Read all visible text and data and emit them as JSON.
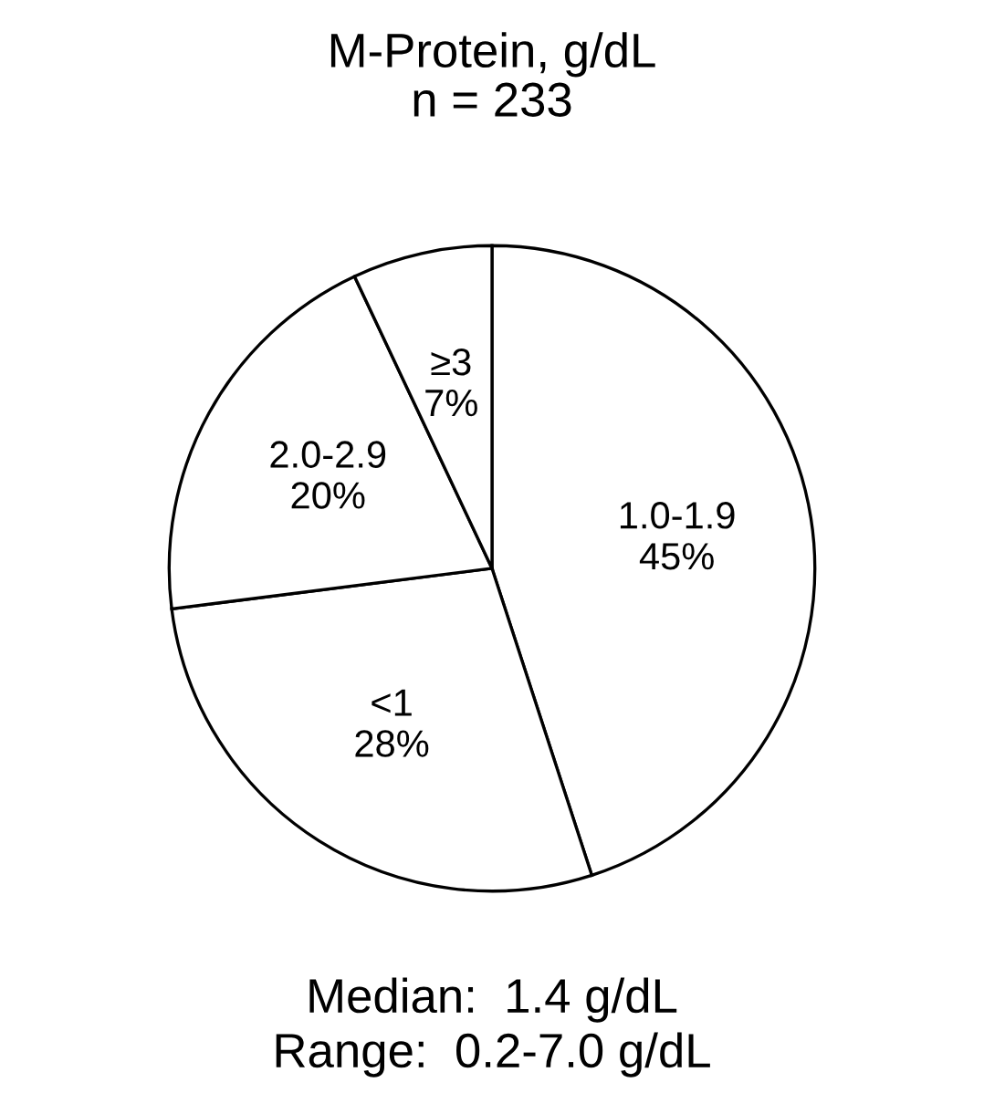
{
  "chart_data": {
    "type": "pie",
    "title": "M-Protein, g/dL",
    "subtitle": "n = 233",
    "categories": [
      "1.0-1.9",
      "<1",
      "2.0-2.9",
      "≥3"
    ],
    "values": [
      45,
      28,
      20,
      7
    ],
    "value_labels": [
      "45%",
      "28%",
      "20%",
      "7%"
    ],
    "colors": [
      "#ffffff",
      "#ffffff",
      "#ffffff",
      "#ffffff"
    ],
    "annotations": [
      "Median:  1.4 g/dL",
      "Range:  0.2-7.0 g/dL"
    ]
  }
}
